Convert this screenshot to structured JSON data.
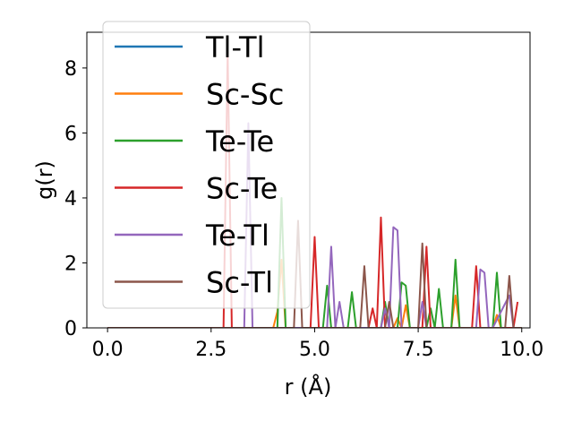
{
  "chart_data": {
    "type": "line",
    "title": "",
    "xlabel": "r (Å)",
    "ylabel": "g(r)",
    "xlim": [
      -0.5,
      10.2
    ],
    "ylim": [
      0,
      9.1
    ],
    "xticks": [
      0.0,
      2.5,
      5.0,
      7.5,
      10.0
    ],
    "xtick_labels": [
      "0.0",
      "2.5",
      "5.0",
      "7.5",
      "10.0"
    ],
    "yticks": [
      0,
      2,
      4,
      6,
      8
    ],
    "ytick_labels": [
      "0",
      "2",
      "4",
      "6",
      "8"
    ],
    "grid": false,
    "legend": "top-left",
    "series": [
      {
        "name": "Tl-Tl",
        "color": "#1f77b4",
        "x": [
          0,
          10.0
        ],
        "y": [
          0,
          0
        ]
      },
      {
        "name": "Sc-Sc",
        "color": "#ff7f0e",
        "x": [
          0,
          4.0,
          4.1,
          4.2,
          4.3,
          6.9,
          7.0,
          7.1,
          7.2,
          7.3,
          8.3,
          8.4,
          8.5,
          9.3,
          9.4,
          9.5,
          10.0
        ],
        "y": [
          0,
          0,
          0.5,
          2.1,
          0,
          0,
          0.3,
          0,
          0.7,
          0,
          0,
          1.0,
          0,
          0,
          0.4,
          0,
          0
        ]
      },
      {
        "name": "Te-Te",
        "color": "#2ca02c",
        "x": [
          0,
          4.1,
          4.2,
          4.3,
          5.2,
          5.3,
          5.4,
          5.8,
          5.9,
          6.0,
          6.6,
          6.7,
          6.8,
          6.9,
          7.0,
          7.1,
          7.2,
          7.3,
          7.7,
          7.8,
          7.9,
          8.0,
          8.1,
          8.3,
          8.4,
          8.5,
          9.3,
          9.4,
          9.5,
          10.0
        ],
        "y": [
          0,
          0,
          4.0,
          0,
          0,
          1.3,
          0,
          0,
          1.1,
          0,
          0,
          0.8,
          0,
          0,
          0,
          1.4,
          1.3,
          0,
          0,
          0.6,
          0,
          1.2,
          0,
          0,
          2.1,
          0,
          0,
          1.7,
          0,
          0
        ]
      },
      {
        "name": "Sc-Te",
        "color": "#d62728",
        "x": [
          0,
          2.8,
          2.9,
          3.0,
          4.9,
          5.0,
          5.1,
          6.3,
          6.4,
          6.5,
          6.6,
          6.7,
          7.6,
          7.7,
          7.8,
          8.8,
          8.9,
          9.0,
          9.8,
          9.9
        ],
        "y": [
          0,
          0,
          8.5,
          0,
          0,
          2.8,
          0,
          0,
          0.6,
          0,
          3.4,
          0,
          0,
          2.5,
          0,
          0,
          1.9,
          0,
          0,
          0.8
        ]
      },
      {
        "name": "Te-Tl",
        "color": "#9467bd",
        "x": [
          0,
          3.3,
          3.4,
          3.5,
          5.3,
          5.4,
          5.5,
          5.6,
          5.7,
          6.6,
          6.7,
          6.8,
          6.9,
          7.0,
          7.1,
          7.5,
          7.6,
          7.7,
          8.9,
          9.0,
          9.1,
          9.2,
          9.3,
          9.7,
          9.8,
          9.9
        ],
        "y": [
          0,
          0,
          6.3,
          0,
          0,
          2.5,
          0,
          0.8,
          0,
          0,
          0.6,
          0,
          3.1,
          3.0,
          0,
          0,
          0.8,
          0,
          0,
          1.8,
          1.7,
          0,
          0,
          1.0,
          0,
          0
        ]
      },
      {
        "name": "Sc-Tl",
        "color": "#8c564b",
        "x": [
          0,
          4.5,
          4.6,
          4.7,
          6.1,
          6.2,
          6.3,
          6.7,
          6.8,
          6.9,
          7.5,
          7.6,
          7.7,
          9.6,
          9.7,
          9.8,
          10.0
        ],
        "y": [
          0,
          0,
          3.3,
          0,
          0,
          1.9,
          0,
          0,
          0.8,
          0,
          0,
          2.6,
          0,
          0,
          1.6,
          0,
          0
        ]
      }
    ]
  }
}
